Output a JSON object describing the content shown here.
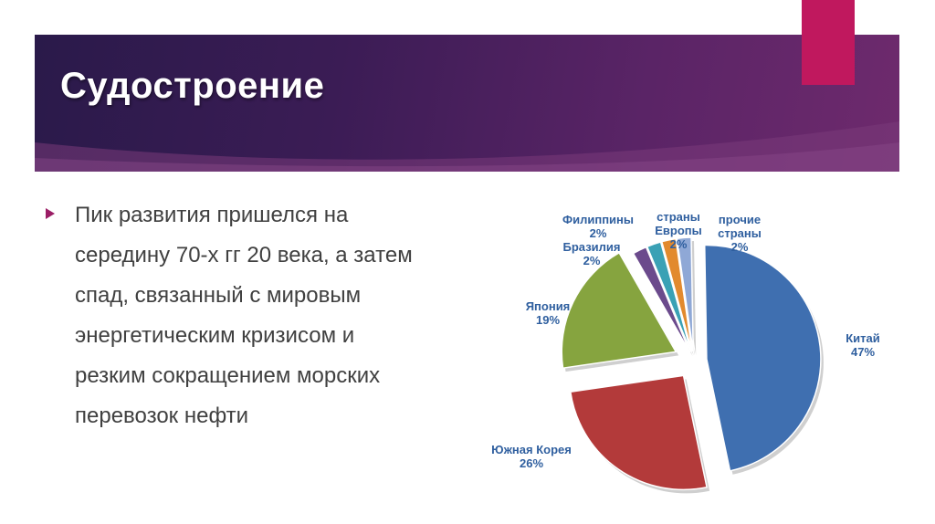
{
  "slide": {
    "title": "Судостроение",
    "bullet": "Пик развития пришелся на середину 70-х гг 20 века, а затем спад, связанный с мировым энергетическим кризисом и резким сокращением морских перевозок нефти"
  },
  "colors": {
    "accent": "#c0185e",
    "bullet": "#9b1e66"
  },
  "chart_data": {
    "type": "pie",
    "title": "",
    "series": [
      {
        "label_lines": [
          "Китай",
          "47%"
        ],
        "value": 47,
        "color": "#3f6fb0"
      },
      {
        "label_lines": [
          "Южная Корея",
          "26%"
        ],
        "value": 26,
        "color": "#b33a3a"
      },
      {
        "label_lines": [
          "Япония",
          "19%"
        ],
        "value": 19,
        "color": "#86a43f"
      },
      {
        "label_lines": [
          "Бразилия",
          "2%"
        ],
        "value": 2,
        "color": "#6b4a8c"
      },
      {
        "label_lines": [
          "Филиппины",
          "2%"
        ],
        "value": 2,
        "color": "#3aa1b5"
      },
      {
        "label_lines": [
          "страны",
          "Европы",
          "2%"
        ],
        "value": 2,
        "color": "#e28a2e"
      },
      {
        "label_lines": [
          "прочие",
          "страны",
          "2%"
        ],
        "value": 2,
        "color": "#8fa8d6"
      }
    ]
  }
}
